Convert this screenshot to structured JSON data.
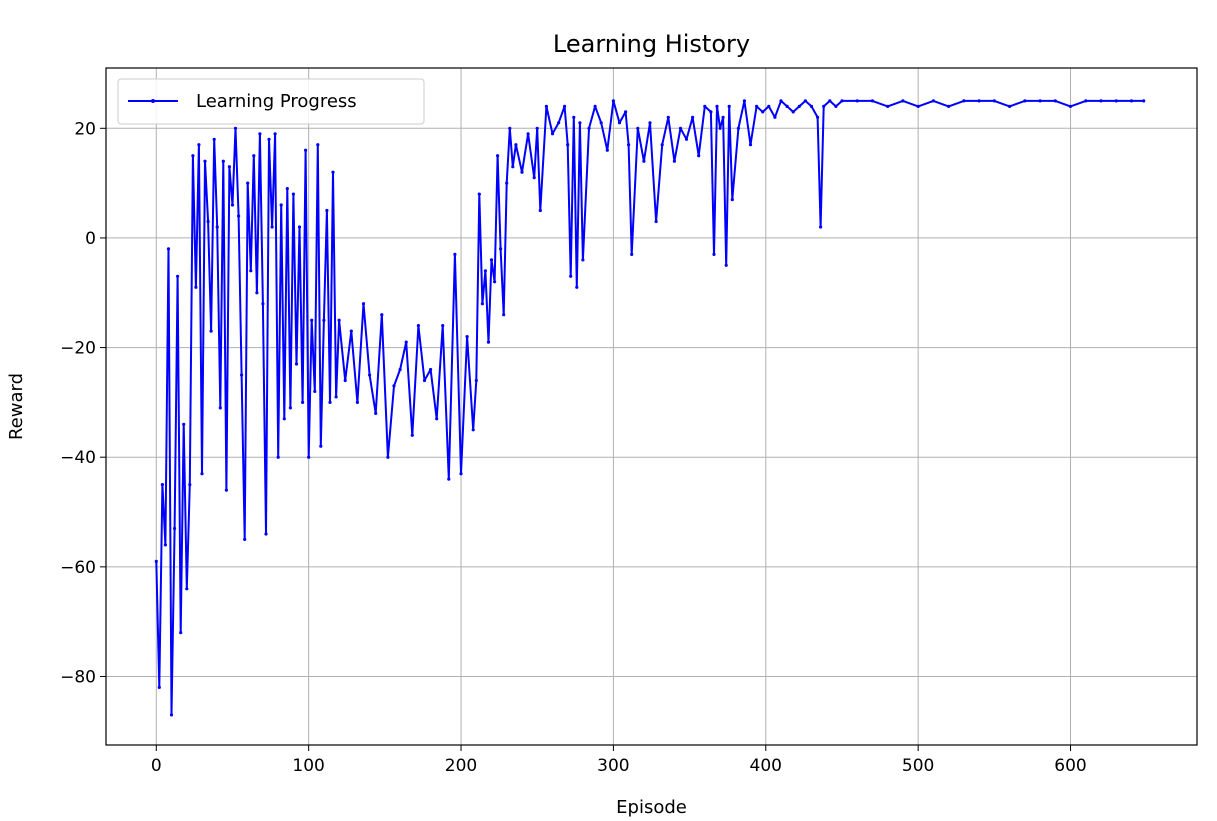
{
  "chart_data": {
    "type": "line",
    "title": "Learning History",
    "xlabel": "Episode",
    "ylabel": "Reward",
    "xlim": [
      -33,
      683
    ],
    "ylim": [
      -92.5,
      31
    ],
    "xticks": [
      0,
      100,
      200,
      300,
      400,
      500,
      600
    ],
    "yticks": [
      -80,
      -60,
      -40,
      -20,
      0,
      20
    ],
    "xtick_labels": [
      "0",
      "100",
      "200",
      "300",
      "400",
      "500",
      "600"
    ],
    "ytick_labels": [
      "−80",
      "−60",
      "−40",
      "−20",
      "0",
      "20"
    ],
    "grid": true,
    "legend": {
      "position": "top-left"
    },
    "series": [
      {
        "name": "Learning Progress",
        "color": "#0000ff",
        "marker": "dot",
        "x": [
          0,
          2,
          4,
          6,
          8,
          10,
          12,
          14,
          16,
          18,
          20,
          22,
          24,
          26,
          28,
          30,
          32,
          34,
          36,
          38,
          40,
          42,
          44,
          46,
          48,
          50,
          52,
          54,
          56,
          58,
          60,
          62,
          64,
          66,
          68,
          70,
          72,
          74,
          76,
          78,
          80,
          82,
          84,
          86,
          88,
          90,
          92,
          94,
          96,
          98,
          100,
          102,
          104,
          106,
          108,
          110,
          112,
          114,
          116,
          118,
          120,
          124,
          128,
          132,
          136,
          140,
          144,
          148,
          152,
          156,
          160,
          164,
          168,
          172,
          176,
          180,
          184,
          188,
          192,
          196,
          200,
          204,
          208,
          210,
          212,
          214,
          216,
          218,
          220,
          222,
          224,
          226,
          228,
          230,
          232,
          234,
          236,
          240,
          244,
          248,
          250,
          252,
          256,
          260,
          264,
          268,
          270,
          272,
          274,
          276,
          278,
          280,
          284,
          288,
          292,
          296,
          300,
          304,
          308,
          310,
          312,
          316,
          320,
          324,
          328,
          332,
          336,
          340,
          344,
          348,
          352,
          356,
          360,
          364,
          366,
          368,
          370,
          372,
          374,
          376,
          378,
          382,
          386,
          390,
          394,
          398,
          402,
          406,
          410,
          414,
          418,
          422,
          426,
          430,
          434,
          436,
          438,
          442,
          446,
          450,
          460,
          470,
          480,
          490,
          500,
          510,
          520,
          530,
          540,
          550,
          560,
          570,
          580,
          590,
          600,
          610,
          620,
          630,
          640,
          648
        ],
        "y": [
          -59,
          -82,
          -45,
          -56,
          -2,
          -87,
          -53,
          -7,
          -72,
          -34,
          -64,
          -45,
          15,
          -9,
          17,
          -43,
          14,
          3,
          -17,
          18,
          2,
          -31,
          14,
          -46,
          13,
          6,
          20,
          4,
          -25,
          -55,
          10,
          -6,
          15,
          -10,
          19,
          -12,
          -54,
          18,
          2,
          19,
          -40,
          6,
          -33,
          9,
          -31,
          8,
          -23,
          2,
          -30,
          16,
          -40,
          -15,
          -28,
          17,
          -38,
          -15,
          5,
          -30,
          12,
          -29,
          -15,
          -26,
          -17,
          -30,
          -12,
          -25,
          -32,
          -14,
          -40,
          -27,
          -24,
          -19,
          -36,
          -16,
          -26,
          -24,
          -33,
          -16,
          -44,
          -3,
          -43,
          -18,
          -35,
          -26,
          8,
          -12,
          -6,
          -19,
          -4,
          -8,
          15,
          -2,
          -14,
          10,
          20,
          13,
          17,
          12,
          19,
          11,
          20,
          5,
          24,
          19,
          21,
          24,
          17,
          -7,
          22,
          -9,
          21,
          -4,
          20,
          24,
          21,
          16,
          25,
          21,
          23,
          17,
          -3,
          20,
          14,
          21,
          3,
          17,
          22,
          14,
          20,
          18,
          22,
          15,
          24,
          23,
          -3,
          24,
          20,
          22,
          -5,
          24,
          7,
          20,
          25,
          17,
          24,
          23,
          24,
          22,
          25,
          24,
          23,
          24,
          25,
          24,
          22,
          2,
          24,
          25,
          24,
          25,
          25,
          25,
          24,
          25,
          24,
          25,
          24,
          25,
          25,
          25,
          24,
          25,
          25,
          25,
          24,
          25,
          25,
          25,
          25,
          25
        ]
      }
    ]
  }
}
